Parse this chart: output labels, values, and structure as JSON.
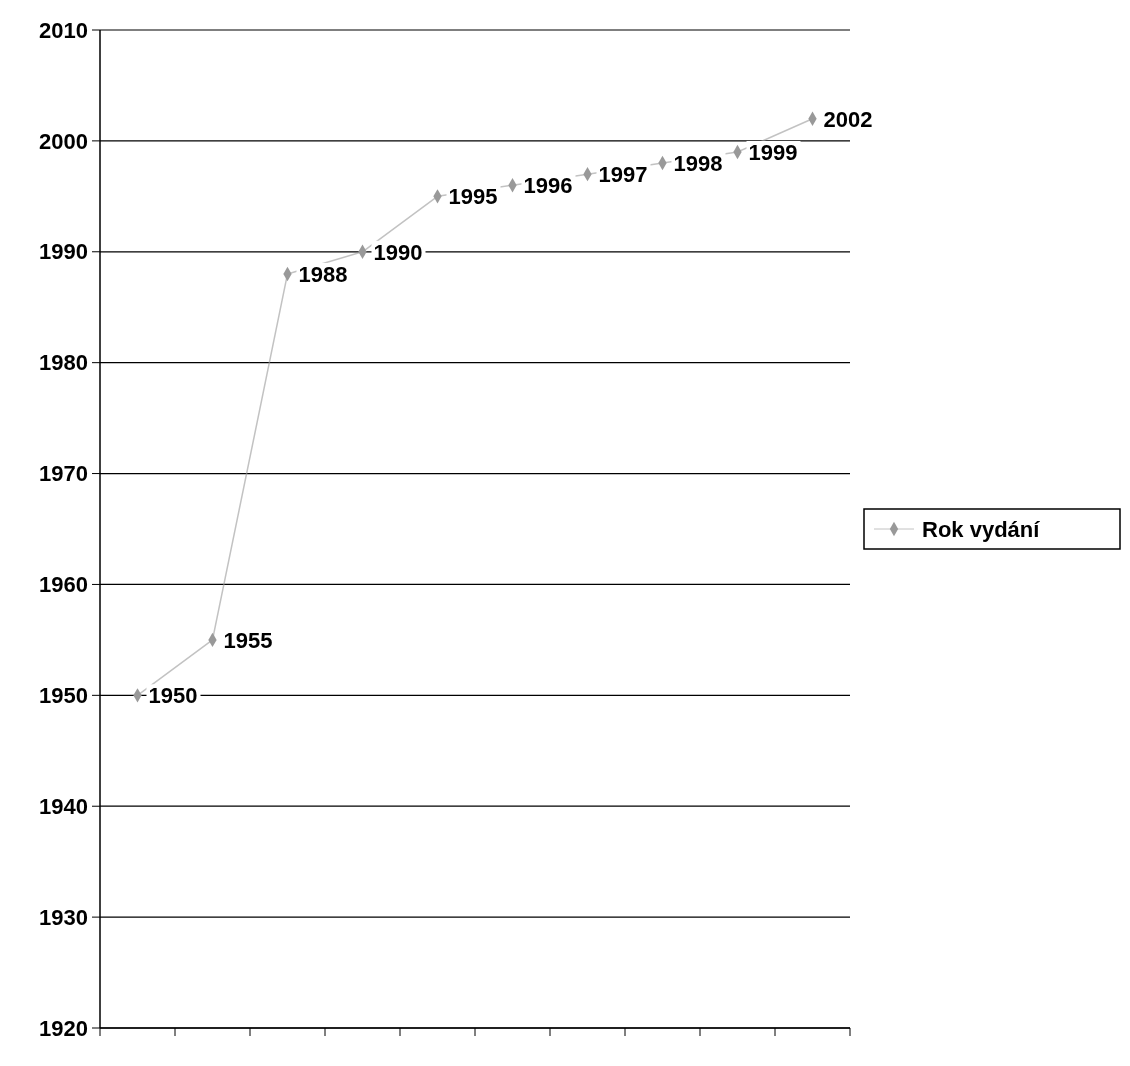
{
  "chart_data": {
    "type": "line",
    "categories": [
      null,
      null,
      null,
      null,
      null,
      null,
      null,
      null,
      null,
      null
    ],
    "series": [
      {
        "name": "Rok vydání",
        "color": "#999999",
        "values": [
          1950,
          1955,
          1988,
          1990,
          1995,
          1996,
          1997,
          1998,
          1999,
          2002
        ]
      }
    ],
    "ylim": [
      1920,
      2010
    ],
    "yticks": [
      1920,
      1930,
      1940,
      1950,
      1960,
      1970,
      1980,
      1990,
      2000,
      2010
    ],
    "grid": "y",
    "legend": "right",
    "marker": "diamond",
    "data_labels": true
  }
}
